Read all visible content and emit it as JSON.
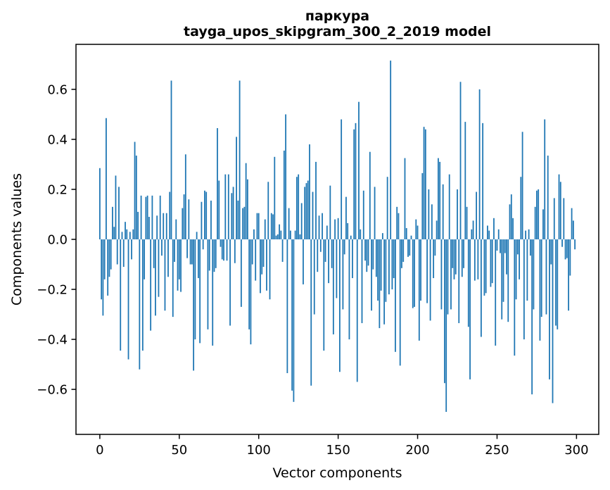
{
  "figure": {
    "title_line1": "паркура",
    "title_line2": "tayga_upos_skipgram_300_2_2019 model",
    "xlabel": "Vector components",
    "ylabel": "Components values"
  },
  "chart_data": {
    "type": "bar",
    "title": "паркура",
    "subtitle": "tayga_upos_skipgram_300_2_2019 model",
    "xlabel": "Vector components",
    "ylabel": "Components values",
    "bar_color": "#1f77b4",
    "spine_color": "#000000",
    "background": "#ffffff",
    "grid": false,
    "legend": "none",
    "xlim": [
      -15,
      314
    ],
    "ylim": [
      -0.78,
      0.78
    ],
    "x_ticks": [
      0,
      50,
      100,
      150,
      200,
      250,
      300
    ],
    "y_ticks": [
      -0.6,
      -0.4,
      -0.2,
      0.0,
      0.2,
      0.4,
      0.6
    ],
    "n_components": 300,
    "values": [
      0.285,
      -0.24,
      -0.305,
      -0.16,
      0.485,
      -0.225,
      -0.15,
      -0.12,
      0.13,
      0.05,
      0.255,
      -0.1,
      0.21,
      -0.445,
      0.03,
      -0.11,
      0.07,
      0.04,
      -0.48,
      0.03,
      -0.08,
      0.04,
      0.39,
      0.335,
      0.11,
      -0.52,
      0.175,
      -0.445,
      -0.16,
      0.17,
      0.175,
      0.09,
      -0.365,
      0.175,
      -0.115,
      -0.305,
      0.095,
      -0.23,
      0.175,
      -0.065,
      0.105,
      -0.285,
      0.105,
      -0.15,
      0.19,
      0.635,
      -0.31,
      -0.09,
      0.08,
      -0.205,
      -0.16,
      -0.21,
      0.125,
      0.18,
      0.34,
      -0.075,
      0.16,
      -0.1,
      -0.1,
      -0.525,
      -0.4,
      0.03,
      -0.155,
      -0.415,
      0.15,
      -0.04,
      0.195,
      0.19,
      -0.36,
      -0.125,
      0.155,
      -0.425,
      -0.13,
      -0.115,
      0.445,
      0.235,
      -0.03,
      -0.08,
      -0.085,
      0.26,
      -0.085,
      0.26,
      -0.345,
      0.185,
      0.21,
      -0.095,
      0.41,
      0.155,
      0.635,
      -0.27,
      0.125,
      0.13,
      0.305,
      0.24,
      -0.36,
      -0.42,
      -0.1,
      0.04,
      -0.165,
      0.105,
      0.105,
      -0.215,
      -0.14,
      -0.11,
      0.08,
      -0.205,
      0.23,
      -0.24,
      0.105,
      0.1,
      0.33,
      0.015,
      0.02,
      0.06,
      0.035,
      -0.09,
      0.355,
      0.5,
      -0.535,
      0.125,
      0.035,
      -0.605,
      -0.65,
      0.035,
      0.25,
      0.26,
      0.02,
      0.145,
      -0.18,
      0.21,
      0.225,
      0.235,
      0.38,
      -0.585,
      0.19,
      -0.3,
      0.31,
      -0.13,
      0.095,
      -0.05,
      0.105,
      -0.445,
      -0.09,
      0.055,
      -0.175,
      0.215,
      -0.115,
      -0.38,
      0.08,
      -0.235,
      0.085,
      -0.53,
      0.48,
      -0.28,
      -0.06,
      0.17,
      0.065,
      -0.4,
      0.015,
      -0.155,
      0.44,
      0.465,
      -0.57,
      0.55,
      0.04,
      -0.335,
      0.195,
      -0.085,
      -0.13,
      -0.105,
      0.35,
      -0.285,
      -0.12,
      0.21,
      -0.15,
      -0.245,
      -0.355,
      -0.205,
      0.025,
      -0.34,
      -0.25,
      0.25,
      -0.22,
      0.715,
      -0.2,
      -0.155,
      -0.45,
      0.13,
      0.105,
      -0.505,
      -0.115,
      -0.09,
      0.325,
      0.045,
      -0.07,
      -0.065,
      0.015,
      -0.275,
      -0.27,
      0.08,
      0.055,
      -0.405,
      -0.245,
      0.265,
      0.45,
      0.44,
      -0.255,
      0.2,
      -0.325,
      0.14,
      -0.155,
      -0.065,
      0.075,
      0.325,
      0.31,
      -0.28,
      0.22,
      -0.575,
      -0.69,
      -0.3,
      0.26,
      -0.28,
      -0.115,
      -0.16,
      -0.14,
      0.2,
      -0.335,
      0.63,
      -0.15,
      -0.115,
      0.47,
      0.13,
      -0.35,
      -0.56,
      0.04,
      0.075,
      -0.165,
      0.19,
      -0.16,
      0.6,
      -0.39,
      0.465,
      -0.225,
      -0.215,
      0.055,
      0.035,
      -0.19,
      -0.175,
      0.085,
      -0.425,
      -0.045,
      0.04,
      -0.055,
      -0.32,
      -0.25,
      -0.055,
      -0.14,
      -0.33,
      0.14,
      0.18,
      0.085,
      -0.465,
      -0.24,
      -0.06,
      -0.16,
      0.25,
      0.43,
      -0.4,
      0.035,
      -0.245,
      0.04,
      -0.065,
      -0.62,
      -0.28,
      0.13,
      0.195,
      0.2,
      -0.405,
      -0.31,
      0.12,
      0.48,
      -0.3,
      0.335,
      -0.56,
      -0.1,
      -0.655,
      0.165,
      -0.345,
      -0.36,
      0.26,
      0.23,
      -0.03,
      0.165,
      -0.08,
      -0.075,
      -0.285,
      -0.145,
      0.125,
      0.075,
      -0.04
    ]
  }
}
